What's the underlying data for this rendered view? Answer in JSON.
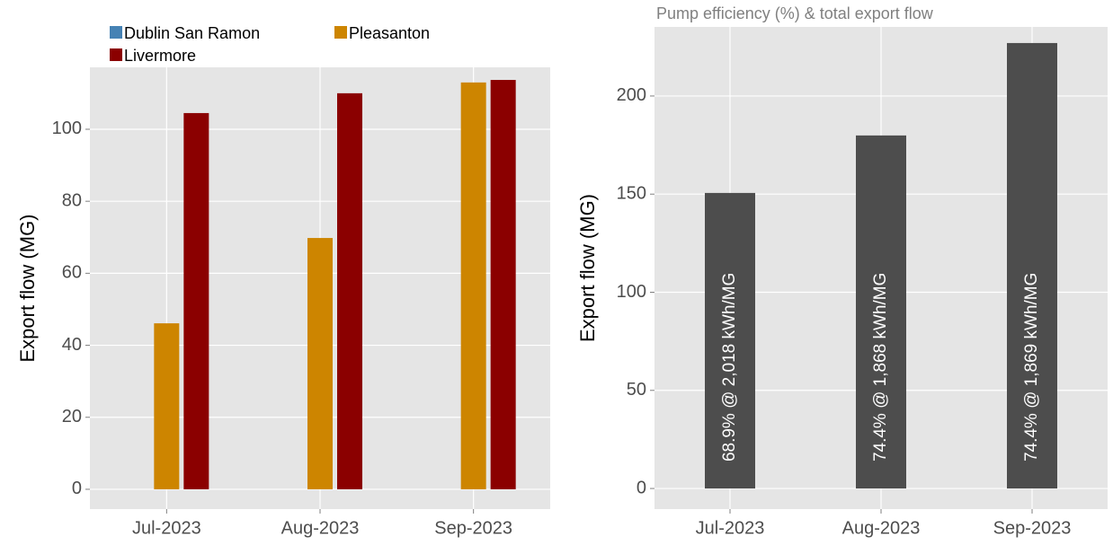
{
  "chart_data": [
    {
      "type": "bar",
      "y_label": "Export flow (MG)",
      "categories": [
        "Jul-2023",
        "Aug-2023",
        "Sep-2023"
      ],
      "series": [
        {
          "name": "Dublin San Ramon",
          "color": "#4682b4",
          "values": [
            0,
            0,
            0
          ]
        },
        {
          "name": "Pleasanton",
          "color": "#cd8500",
          "values": [
            46.1,
            69.8,
            113
          ]
        },
        {
          "name": "Livermore",
          "color": "#8b0000",
          "values": [
            104.5,
            110,
            113.7
          ]
        }
      ],
      "ylim": [
        -5.5,
        117.2
      ],
      "yticks": [
        0,
        20,
        40,
        60,
        80,
        100
      ],
      "grid": true,
      "legend": "top"
    },
    {
      "type": "bar",
      "title": "Pump efficiency (%) & total export flow",
      "y_label": "Export flow (MG)",
      "categories": [
        "Jul-2023",
        "Aug-2023",
        "Sep-2023"
      ],
      "values": [
        150.6,
        179.9,
        227
      ],
      "annotations": [
        "68.9% @ 2,018 kWh/MG",
        "74.4% @ 1,868 kWh/MG",
        "74.4% @ 1,869 kWh/MG"
      ],
      "color": "#4d4d4d",
      "ylim": [
        -10.5,
        235.2
      ],
      "yticks": [
        0,
        50,
        100,
        150,
        200
      ],
      "grid": true
    }
  ]
}
